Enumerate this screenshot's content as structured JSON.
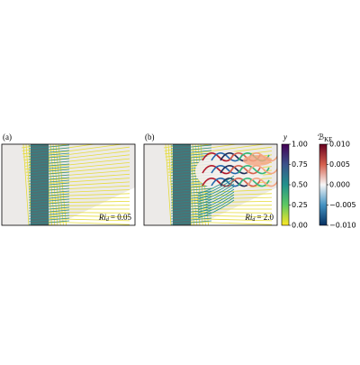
{
  "panels": [
    {
      "label": "(a)",
      "annotation": {
        "var": "Ri",
        "sub": "d",
        "rest": "= 0.05"
      }
    },
    {
      "label": "(b)",
      "annotation": {
        "var": "Ri",
        "sub": "d",
        "rest": "= 2.0"
      }
    }
  ],
  "colorbars": [
    {
      "label": "y",
      "lim": [
        0,
        1
      ],
      "ticks": [
        {
          "value": 1,
          "label": "1.00"
        },
        {
          "value": 0.75,
          "label": "0.75"
        },
        {
          "value": 0.5,
          "label": "0.50"
        },
        {
          "value": 0.25,
          "label": "0.25"
        },
        {
          "value": 0,
          "label": "0.00"
        }
      ]
    },
    {
      "label": {
        "symbol": "ℬ",
        "sub": "KE"
      },
      "lim": [
        -0.01,
        0.01
      ],
      "ticks": [
        {
          "value": 0.01,
          "label": "0.010"
        },
        {
          "value": 0.005,
          "label": "0.005"
        },
        {
          "value": 0,
          "label": "0.000"
        },
        {
          "value": -0.005,
          "label": "−0.005"
        },
        {
          "value": -0.01,
          "label": "−0.010"
        }
      ]
    }
  ]
}
